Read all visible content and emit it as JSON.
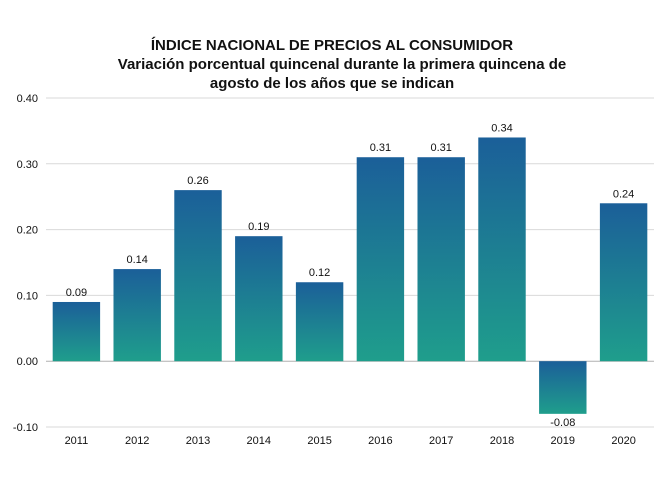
{
  "title": "ÍNDICE NACIONAL DE PRECIOS AL CONSUMIDOR",
  "subtitle_line1": "Variación porcentual quincenal durante la primera quincena de",
  "subtitle_line2": "agosto de los años que se indican",
  "colors": {
    "bar_top": "#1b5f99",
    "bar_bottom": "#1f9e8c",
    "grid": "#d9d9d9",
    "axis": "#b0b0b0"
  },
  "chart_data": {
    "type": "bar",
    "title": "ÍNDICE NACIONAL DE PRECIOS AL CONSUMIDOR",
    "subtitle": "Variación porcentual quincenal durante la primera quincena de agosto de los años que se indican",
    "categories": [
      "2011",
      "2012",
      "2013",
      "2014",
      "2015",
      "2016",
      "2017",
      "2018",
      "2019",
      "2020"
    ],
    "values": [
      0.09,
      0.14,
      0.26,
      0.19,
      0.12,
      0.31,
      0.31,
      0.34,
      -0.08,
      0.24
    ],
    "value_labels": [
      "0.09",
      "0.14",
      "0.26",
      "0.19",
      "0.12",
      "0.31",
      "0.31",
      "0.34",
      "-0.08",
      "0.24"
    ],
    "xlabel": "",
    "ylabel": "",
    "ylim": [
      -0.1,
      0.4
    ],
    "yticks": [
      -0.1,
      0.0,
      0.1,
      0.2,
      0.3,
      0.4
    ],
    "ytick_labels": [
      "-0.10",
      "0.00",
      "0.10",
      "0.20",
      "0.30",
      "0.40"
    ],
    "grid": true,
    "legend": "none"
  }
}
